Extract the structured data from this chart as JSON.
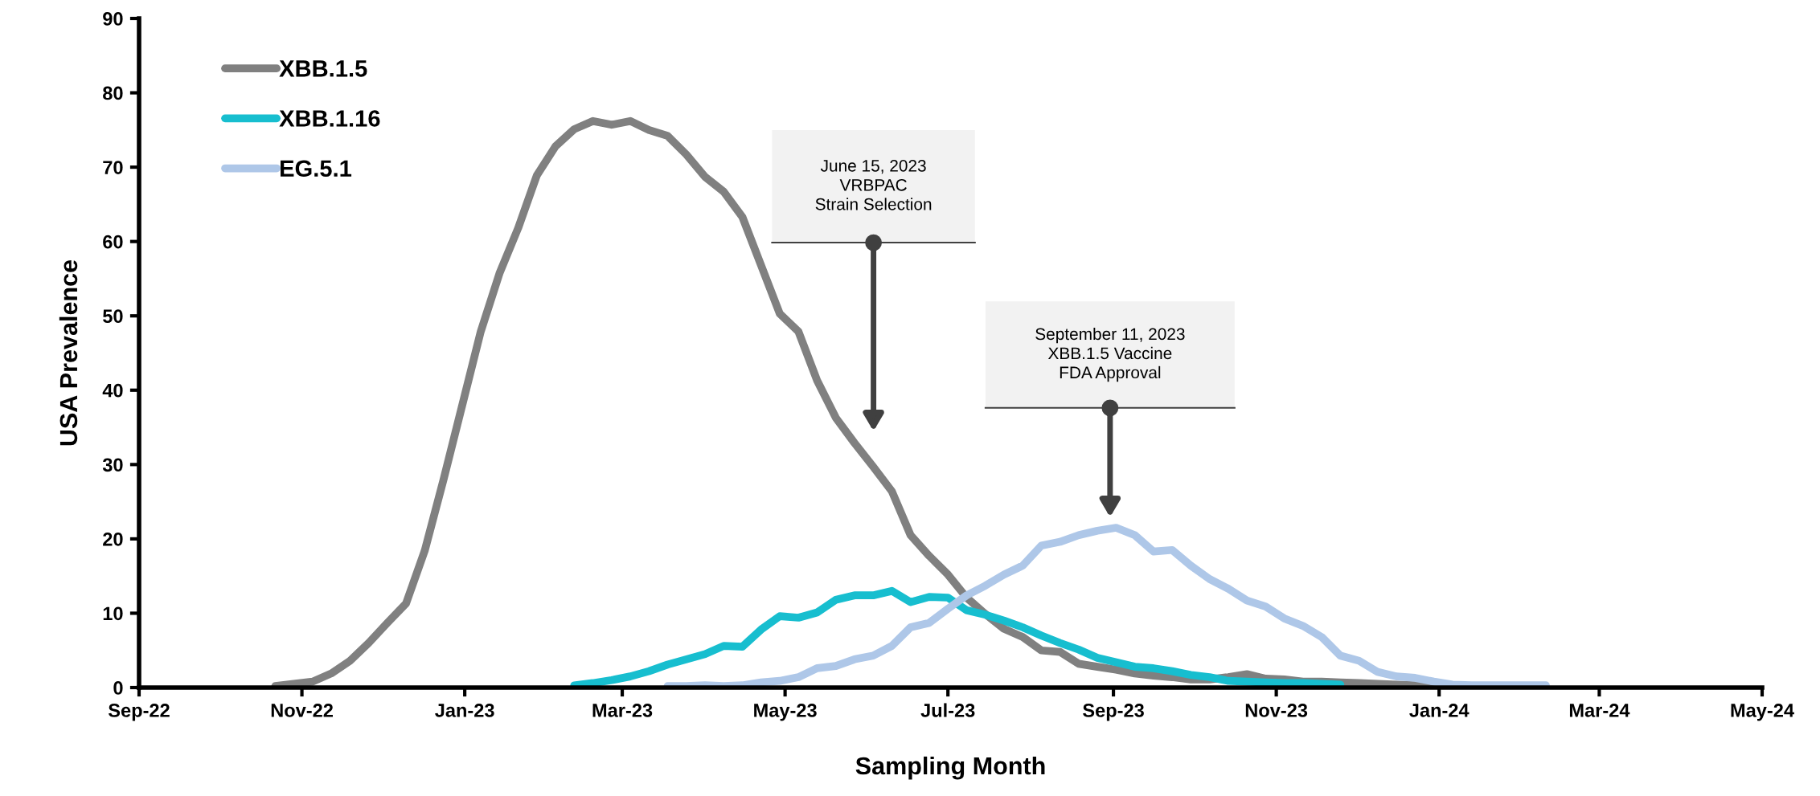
{
  "chart_data": {
    "type": "line",
    "xlabel": "Sampling Month",
    "ylabel": "USA Prevalence",
    "x": [
      "2022-10-22",
      "2022-10-29",
      "2022-11-05",
      "2022-11-12",
      "2022-11-19",
      "2022-11-26",
      "2022-12-03",
      "2022-12-10",
      "2022-12-17",
      "2022-12-24",
      "2022-12-31",
      "2023-01-07",
      "2023-01-14",
      "2023-01-21",
      "2023-01-28",
      "2023-02-04",
      "2023-02-11",
      "2023-02-18",
      "2023-02-25",
      "2023-03-04",
      "2023-03-11",
      "2023-03-18",
      "2023-03-25",
      "2023-04-01",
      "2023-04-08",
      "2023-04-15",
      "2023-04-22",
      "2023-04-29",
      "2023-05-06",
      "2023-05-13",
      "2023-05-20",
      "2023-05-27",
      "2023-06-03",
      "2023-06-10",
      "2023-06-17",
      "2023-06-24",
      "2023-07-01",
      "2023-07-08",
      "2023-07-15",
      "2023-07-22",
      "2023-07-29",
      "2023-08-05",
      "2023-08-12",
      "2023-08-19",
      "2023-08-26",
      "2023-09-02",
      "2023-09-09",
      "2023-09-16",
      "2023-09-23",
      "2023-09-30",
      "2023-10-07",
      "2023-10-14",
      "2023-10-21",
      "2023-10-28",
      "2023-11-04",
      "2023-11-11",
      "2023-11-18",
      "2023-11-25",
      "2023-12-02",
      "2023-12-09",
      "2023-12-16",
      "2023-12-23",
      "2023-12-30",
      "2024-01-06",
      "2024-01-13",
      "2024-01-20",
      "2024-01-27",
      "2024-02-03",
      "2024-02-10"
    ],
    "series": [
      {
        "name": "XBB.1.5",
        "color": "#808080",
        "values": [
          0.2,
          0.5,
          0.8,
          1.9,
          3.6,
          6.0,
          8.7,
          11.3,
          18.4,
          27.9,
          37.9,
          47.9,
          55.7,
          61.8,
          68.9,
          72.8,
          75.1,
          76.2,
          75.7,
          76.2,
          75.0,
          74.2,
          71.7,
          68.7,
          66.7,
          63.3,
          56.8,
          50.3,
          47.9,
          41.3,
          36.3,
          32.9,
          29.7,
          26.4,
          20.5,
          17.7,
          15.2,
          12.1,
          9.9,
          7.9,
          6.8,
          5.0,
          4.8,
          3.2,
          2.8,
          2.4,
          1.9,
          1.6,
          1.4,
          1.1,
          1.1,
          1.4,
          1.8,
          1.2,
          1.1,
          0.8,
          0.8,
          0.7,
          0.6,
          0.5,
          0.4,
          0.3,
          0.1,
          null,
          null,
          null,
          null,
          null,
          null
        ]
      },
      {
        "name": "XBB.1.16",
        "color": "#17becf",
        "values": [
          null,
          null,
          null,
          null,
          null,
          null,
          null,
          null,
          null,
          null,
          null,
          null,
          null,
          null,
          null,
          null,
          0.3,
          0.6,
          1.0,
          1.5,
          2.2,
          3.1,
          3.8,
          4.5,
          5.6,
          5.5,
          7.8,
          9.6,
          9.4,
          10.1,
          11.8,
          12.4,
          12.4,
          13.0,
          11.5,
          12.2,
          12.1,
          10.4,
          9.8,
          9.0,
          8.1,
          7.0,
          6.0,
          5.1,
          4.0,
          3.4,
          2.8,
          2.6,
          2.2,
          1.7,
          1.4,
          0.9,
          0.8,
          0.7,
          0.6,
          0.6,
          0.5,
          0.4,
          null,
          null,
          null,
          null,
          null,
          null,
          null,
          null,
          null,
          null,
          null
        ]
      },
      {
        "name": "EG.5.1",
        "color": "#aec7e8",
        "values": [
          null,
          null,
          null,
          null,
          null,
          null,
          null,
          null,
          null,
          null,
          null,
          null,
          null,
          null,
          null,
          null,
          null,
          null,
          null,
          null,
          null,
          0.2,
          0.2,
          0.3,
          0.2,
          0.3,
          0.7,
          0.9,
          1.4,
          2.6,
          2.9,
          3.8,
          4.3,
          5.6,
          8.1,
          8.7,
          10.6,
          12.4,
          13.7,
          15.2,
          16.4,
          19.1,
          19.6,
          20.5,
          21.1,
          21.5,
          20.5,
          18.3,
          18.5,
          16.4,
          14.6,
          13.3,
          11.7,
          10.9,
          9.3,
          8.3,
          6.8,
          4.3,
          3.6,
          2.1,
          1.5,
          1.3,
          0.8,
          0.4,
          0.3,
          0.3,
          0.3,
          0.3,
          0.3
        ]
      }
    ],
    "xlim": [
      "2022-09-01",
      "2024-05-01"
    ],
    "xticks": [
      {
        "value": "2022-09-01",
        "label": "Sep-22"
      },
      {
        "value": "2022-11-01",
        "label": "Nov-22"
      },
      {
        "value": "2023-01-01",
        "label": "Jan-23"
      },
      {
        "value": "2023-03-01",
        "label": "Mar-23"
      },
      {
        "value": "2023-05-01",
        "label": "May-23"
      },
      {
        "value": "2023-07-01",
        "label": "Jul-23"
      },
      {
        "value": "2023-09-01",
        "label": "Sep-23"
      },
      {
        "value": "2023-11-01",
        "label": "Nov-23"
      },
      {
        "value": "2024-01-01",
        "label": "Jan-24"
      },
      {
        "value": "2024-03-01",
        "label": "Mar-24"
      },
      {
        "value": "2024-05-01",
        "label": "May-24"
      }
    ],
    "ylim": [
      0,
      90
    ],
    "yticks": [
      0,
      10,
      20,
      30,
      40,
      50,
      60,
      70,
      80,
      90
    ],
    "grid": false,
    "legend": "top left",
    "marker": "none",
    "line_style": "solid",
    "annotations": [
      "June 15, 2023\nVRBPAC\nStrain Selection",
      "September 11, 2023\nXBB.1.5 Vaccine\nFDA Approval"
    ]
  }
}
